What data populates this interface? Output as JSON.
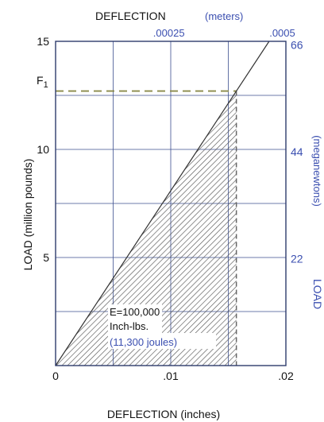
{
  "chart_data": {
    "type": "line",
    "x": [
      0,
      0.0157
    ],
    "y": [
      0,
      12.7
    ],
    "xlabel_bottom": "DEFLECTION (inches)",
    "xlabel_top": "DEFLECTION",
    "xlabel_top_unit": "(meters)",
    "ylabel_left": "LOAD (million pounds)",
    "ylabel_right": "LOAD",
    "ylabel_right_unit": "(meganewtons)",
    "xlim": [
      0,
      0.02
    ],
    "ylim": [
      0,
      15
    ],
    "xticks_bottom": [
      {
        "value": 0,
        "label": "0"
      },
      {
        "value": 0.01,
        "label": ".01"
      },
      {
        "value": 0.02,
        "label": ".02"
      }
    ],
    "yticks_left": [
      {
        "value": 5,
        "label": "5"
      },
      {
        "value": 10,
        "label": "10"
      },
      {
        "value": 15,
        "label": "15"
      }
    ],
    "xticks_top": [
      {
        "value": 0.00984,
        "label": ".00025"
      },
      {
        "value": 0.01969,
        "label": ".0005"
      }
    ],
    "yticks_right": [
      {
        "value": 4.946,
        "label": "22"
      },
      {
        "value": 9.892,
        "label": "44"
      },
      {
        "value": 14.838,
        "label": "66"
      }
    ],
    "f1": {
      "label": "F",
      "subscript": "1",
      "value": 12.7
    },
    "max_deflection": 0.0157,
    "shaded_area": {
      "energy_label": "E=100,000",
      "energy_unit": "Inch-lbs.",
      "energy_metric": "(11,300 joules)"
    },
    "grid": true,
    "colors": {
      "primary_text": "#111111",
      "metric_text": "#3b4fb0",
      "grid": "#3c4f8f",
      "line": "#333333",
      "dashed": "#8a8a4a",
      "hatch": "#555555"
    }
  }
}
